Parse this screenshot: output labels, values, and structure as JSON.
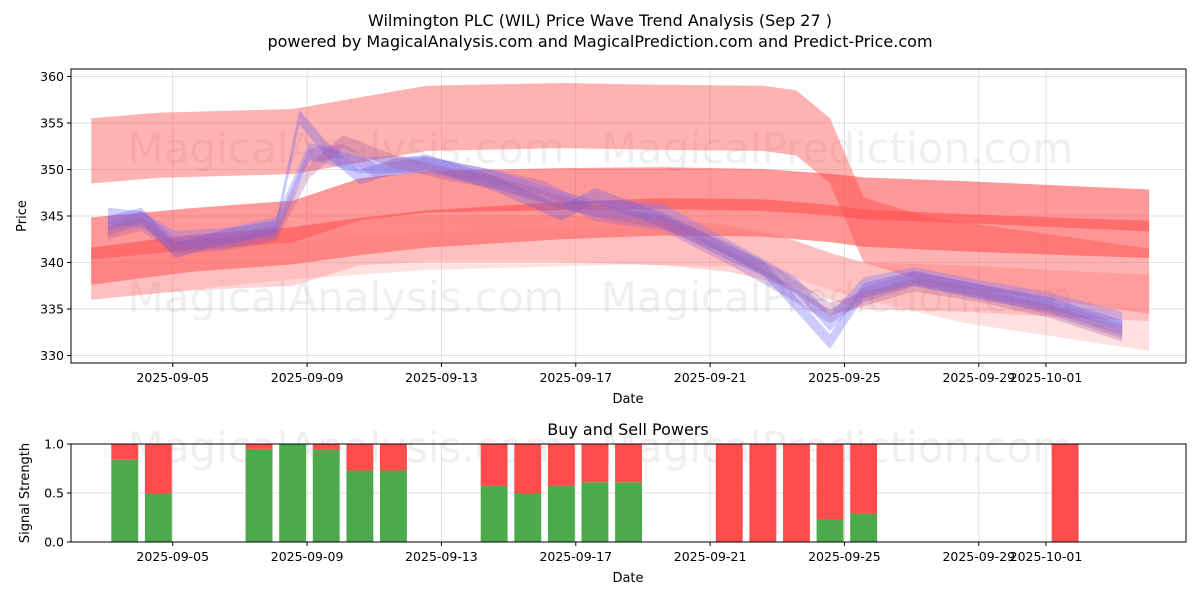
{
  "chart_data": [
    {
      "type": "area",
      "title": "Wilmington PLC (WIL) Price Wave Trend Analysis (Sep 27 )",
      "subtitle": "powered by MagicalAnalysis.com and MagicalPrediction.com and Predict-Price.com",
      "xlabel": "Date",
      "ylabel": "Price",
      "xlim": [
        -0.6,
        32.6
      ],
      "ylim": [
        329.2,
        360.8
      ],
      "y_ticks": [
        330,
        335,
        340,
        345,
        350,
        355,
        360
      ],
      "x_ticks": [
        {
          "pos": 2.43,
          "label": "2025-09-05"
        },
        {
          "pos": 6.43,
          "label": "2025-09-09"
        },
        {
          "pos": 10.43,
          "label": "2025-09-13"
        },
        {
          "pos": 14.43,
          "label": "2025-09-17"
        },
        {
          "pos": 18.43,
          "label": "2025-09-21"
        },
        {
          "pos": 22.43,
          "label": "2025-09-25"
        },
        {
          "pos": 26.43,
          "label": "2025-09-29"
        },
        {
          "pos": 28.43,
          "label": "2025-10-01"
        }
      ],
      "watermarks": [
        "MagicalAnalysis.com",
        "MagicalPrediction.com",
        "MagicalAnalysis.com",
        "MagicalPrediction.com"
      ],
      "series": [
        {
          "name": "red-wave-upper",
          "color": "#ff5555",
          "opacity": 0.45,
          "width": 7,
          "x": [
            0,
            2,
            6,
            10,
            14,
            17,
            20,
            21,
            22,
            23,
            25,
            28,
            31.5
          ],
          "center": [
            352,
            352.6,
            353,
            355.5,
            355.8,
            355.6,
            355.5,
            355,
            352,
            343.5,
            341.3,
            339.8,
            338
          ]
        },
        {
          "name": "red-wave-middle",
          "color": "#ff4444",
          "opacity": 0.55,
          "width": 4.5,
          "x": [
            0,
            3,
            6,
            8,
            10,
            14,
            17,
            20,
            22,
            23,
            26,
            29,
            31.5
          ],
          "center": [
            342.6,
            343.6,
            344.4,
            346.8,
            347.6,
            347.9,
            348.0,
            347.8,
            347.3,
            346.9,
            346.5,
            346.0,
            345.6
          ]
        },
        {
          "name": "red-wave-lower",
          "color": "#ff5050",
          "opacity": 0.6,
          "width": 4,
          "x": [
            0,
            3,
            6,
            8,
            10,
            14,
            17,
            20,
            22,
            23,
            26,
            29,
            31.5
          ],
          "center": [
            339.6,
            341.0,
            341.8,
            342.8,
            343.6,
            344.5,
            344.9,
            344.8,
            344.2,
            343.7,
            343.2,
            342.8,
            342.5
          ]
        },
        {
          "name": "red-wave-faint",
          "color": "#ff6666",
          "opacity": 0.28,
          "width": 5,
          "x": [
            0,
            3,
            6,
            8,
            10,
            14,
            17,
            19,
            21,
            22,
            23,
            26,
            29,
            31.5
          ],
          "center": [
            338.5,
            339.5,
            340,
            342.2,
            342.6,
            342.6,
            342.2,
            341.5,
            339.8,
            338.5,
            337.5,
            337.2,
            336.6,
            336.2
          ]
        },
        {
          "name": "red-wave-trend",
          "color": "#ff7777",
          "opacity": 0.22,
          "width": 4,
          "x": [
            0,
            6,
            10,
            16,
            20,
            22.5,
            26,
            31.5
          ],
          "center": [
            338,
            340.2,
            341.2,
            341.8,
            341.5,
            338.5,
            335.5,
            332.5
          ]
        },
        {
          "name": "price-wave-1",
          "color": "#7777ff",
          "opacity": 0.35,
          "width": 1.8,
          "x": [
            0.5,
            1.5,
            2.5,
            4,
            5.5,
            6.5,
            8,
            10,
            12,
            14,
            15,
            17,
            19,
            20,
            21,
            22,
            23,
            24.5,
            26.5,
            28.5,
            30.7
          ],
          "center": [
            345,
            344.6,
            342.5,
            342.8,
            344,
            352,
            350.5,
            350.5,
            349.0,
            346.8,
            345.8,
            345.5,
            341.5,
            339.5,
            337.5,
            333.5,
            337.5,
            338.6,
            337.2,
            335.9,
            333.8
          ]
        },
        {
          "name": "price-wave-2",
          "color": "#5555ee",
          "opacity": 0.3,
          "width": 1.6,
          "x": [
            0.5,
            1.5,
            2.5,
            4,
            5.5,
            6.2,
            7,
            8,
            9,
            10,
            12,
            14,
            15,
            17,
            19,
            20,
            21,
            22,
            23,
            24.5,
            26.5,
            28.5,
            30.7
          ],
          "center": [
            344.2,
            345.1,
            341.3,
            342.8,
            343.7,
            355.6,
            352.2,
            349.2,
            350.3,
            350.8,
            348.5,
            345.3,
            347.2,
            344.6,
            341,
            339.4,
            335.5,
            331.5,
            337,
            338.3,
            336.8,
            335.5,
            333
          ]
        },
        {
          "name": "price-wave-3",
          "color": "#9966cc",
          "opacity": 0.35,
          "width": 1.5,
          "x": [
            0.5,
            1.5,
            2.5,
            4,
            5.5,
            6.5,
            7.5,
            8.5,
            10,
            12,
            13.5,
            15,
            17,
            19,
            20.5,
            22,
            23,
            24.5,
            26.5,
            28.5,
            30.7
          ],
          "center": [
            343.6,
            344.8,
            342.0,
            342.2,
            343.3,
            351.5,
            352.0,
            349.8,
            350.6,
            349.2,
            348.0,
            345.2,
            344.2,
            340.5,
            337.5,
            334.2,
            336.5,
            338.2,
            336.9,
            335.2,
            332.6
          ]
        },
        {
          "name": "price-wave-4",
          "color": "#aa5599",
          "opacity": 0.3,
          "width": 1.4,
          "x": [
            0.5,
            1.5,
            2.5,
            4,
            5.5,
            6.5,
            7.5,
            9,
            10.5,
            12,
            14,
            15,
            17,
            19,
            20.5,
            22,
            23,
            24.5,
            26.5,
            28.5,
            30.7
          ],
          "center": [
            343.2,
            344.1,
            341.6,
            342.0,
            343.0,
            349.8,
            353.0,
            350.9,
            349.6,
            348.6,
            346.5,
            345.6,
            344.4,
            341.4,
            338.5,
            335.0,
            336.0,
            337.6,
            336.4,
            334.8,
            332.2
          ]
        }
      ]
    },
    {
      "type": "bar",
      "title": "Buy and Sell Powers",
      "xlabel": "Date",
      "ylabel": "Signal Strength",
      "xlim": [
        -0.6,
        32.6
      ],
      "ylim": [
        0,
        1
      ],
      "y_ticks": [
        {
          "pos": 0,
          "label": "0.0"
        },
        {
          "pos": 0.5,
          "label": "0.5"
        },
        {
          "pos": 1,
          "label": "1.0"
        }
      ],
      "x_ticks": [
        {
          "pos": 2.43,
          "label": "2025-09-05"
        },
        {
          "pos": 6.43,
          "label": "2025-09-09"
        },
        {
          "pos": 10.43,
          "label": "2025-09-13"
        },
        {
          "pos": 14.43,
          "label": "2025-09-17"
        },
        {
          "pos": 18.43,
          "label": "2025-09-21"
        },
        {
          "pos": 22.43,
          "label": "2025-09-25"
        },
        {
          "pos": 26.43,
          "label": "2025-09-29"
        },
        {
          "pos": 28.43,
          "label": "2025-10-01"
        }
      ],
      "buy_color": "#4caa4c",
      "sell_color": "#ff4d4d",
      "watermarks": [
        "MagicalAnalysis.com",
        "MagicalPrediction.com"
      ],
      "bars": [
        {
          "x": 1,
          "buy": 0.84
        },
        {
          "x": 2,
          "buy": 0.5
        },
        {
          "x": 5,
          "buy": 0.95
        },
        {
          "x": 6,
          "buy": 1.0
        },
        {
          "x": 7,
          "buy": 0.94
        },
        {
          "x": 8,
          "buy": 0.73
        },
        {
          "x": 9,
          "buy": 0.73
        },
        {
          "x": 12,
          "buy": 0.57
        },
        {
          "x": 13,
          "buy": 0.5
        },
        {
          "x": 14,
          "buy": 0.57
        },
        {
          "x": 15,
          "buy": 0.61
        },
        {
          "x": 16,
          "buy": 0.61
        },
        {
          "x": 19,
          "buy": 0.0
        },
        {
          "x": 20,
          "buy": 0.0
        },
        {
          "x": 21,
          "buy": 0.0
        },
        {
          "x": 22,
          "buy": 0.23
        },
        {
          "x": 23,
          "buy": 0.29
        },
        {
          "x": 29,
          "buy": 0.0
        }
      ]
    }
  ]
}
